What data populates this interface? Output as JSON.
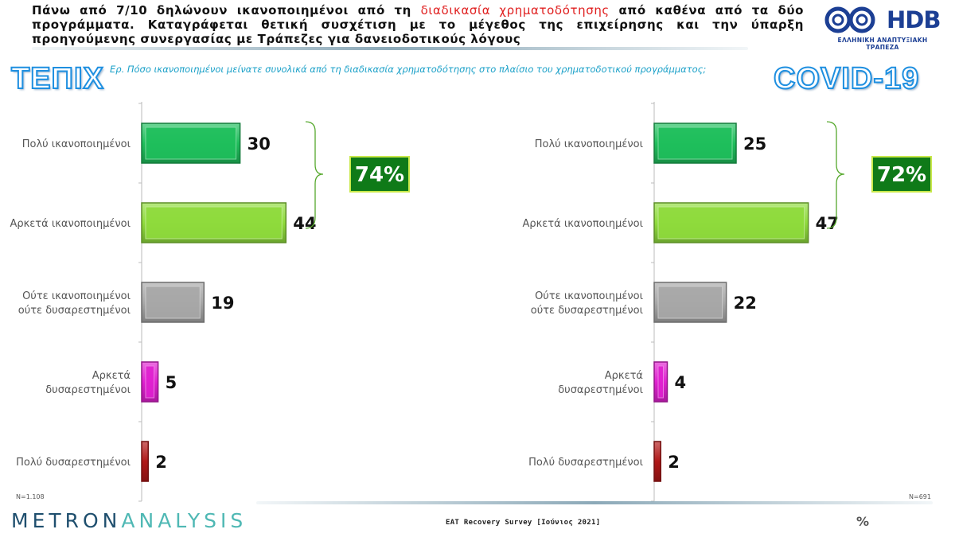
{
  "header": {
    "part1": "Πάνω από 7/10 δηλώνουν ικανοποιημένοι από τη ",
    "highlight": "διαδικασία χρηματοδότησης",
    "part2": " από καθένα από τα δύο προγράμματα. Καταγράφεται θετική συσχέτιση με το μέγεθος της επιχείρησης και την ύπαρξη προηγούμενης συνεργασίας με Τράπεζες για δανειοδοτικούς λόγους",
    "highlight_color": "#e02020"
  },
  "logo": {
    "text": "HDB",
    "subtitle": "ΕΛΛΗΝΙΚΗ ΑΝΑΠΤΥΞΙΑΚΗ ΤΡΑΠΕΖΑ"
  },
  "question": "Ερ. Πόσο ικανοποιημένοι μείνατε συνολικά από τη διαδικασία χρηματοδότησης στο πλαίσιο του χρηματοδοτικού  προγράμματος;",
  "footer": {
    "brand_part1": "METRON",
    "brand_part2": "ANALYSIS",
    "survey": "EAT Recovery Survey [Ιούνιος 2021]",
    "pct_icon": "%"
  },
  "chart_data": [
    {
      "type": "bar",
      "orientation": "horizontal",
      "title": "ΤΕΠΙΧ",
      "categories": [
        "Πολύ ικανοποιημένοι",
        "Αρκετά ικανοποιημένοι",
        "Ούτε ικανοποιημένοι ούτε δυσαρεστημένοι",
        "Αρκετά δυσαρεστημένοι",
        "Πολύ δυσαρεστημένοι"
      ],
      "values": [
        30,
        44,
        19,
        5,
        2
      ],
      "colors": [
        "#1fbf5c",
        "#8fdb3c",
        "#a8a8a8",
        "#e020d0",
        "#b01818"
      ],
      "summary": "74%",
      "note": "N=1.108"
    },
    {
      "type": "bar",
      "orientation": "horizontal",
      "title": "COVID-19",
      "categories": [
        "Πολύ ικανοποιημένοι",
        "Αρκετά ικανοποιημένοι",
        "Ούτε ικανοποιημένοι ούτε δυσαρεστημένοι",
        "Αρκετά δυσαρεστημένοι",
        "Πολύ δυσαρεστημένοι"
      ],
      "values": [
        25,
        47,
        22,
        4,
        2
      ],
      "colors": [
        "#1fbf5c",
        "#8fdb3c",
        "#a8a8a8",
        "#e020d0",
        "#b01818"
      ],
      "summary": "72%",
      "note": "N=691"
    }
  ]
}
